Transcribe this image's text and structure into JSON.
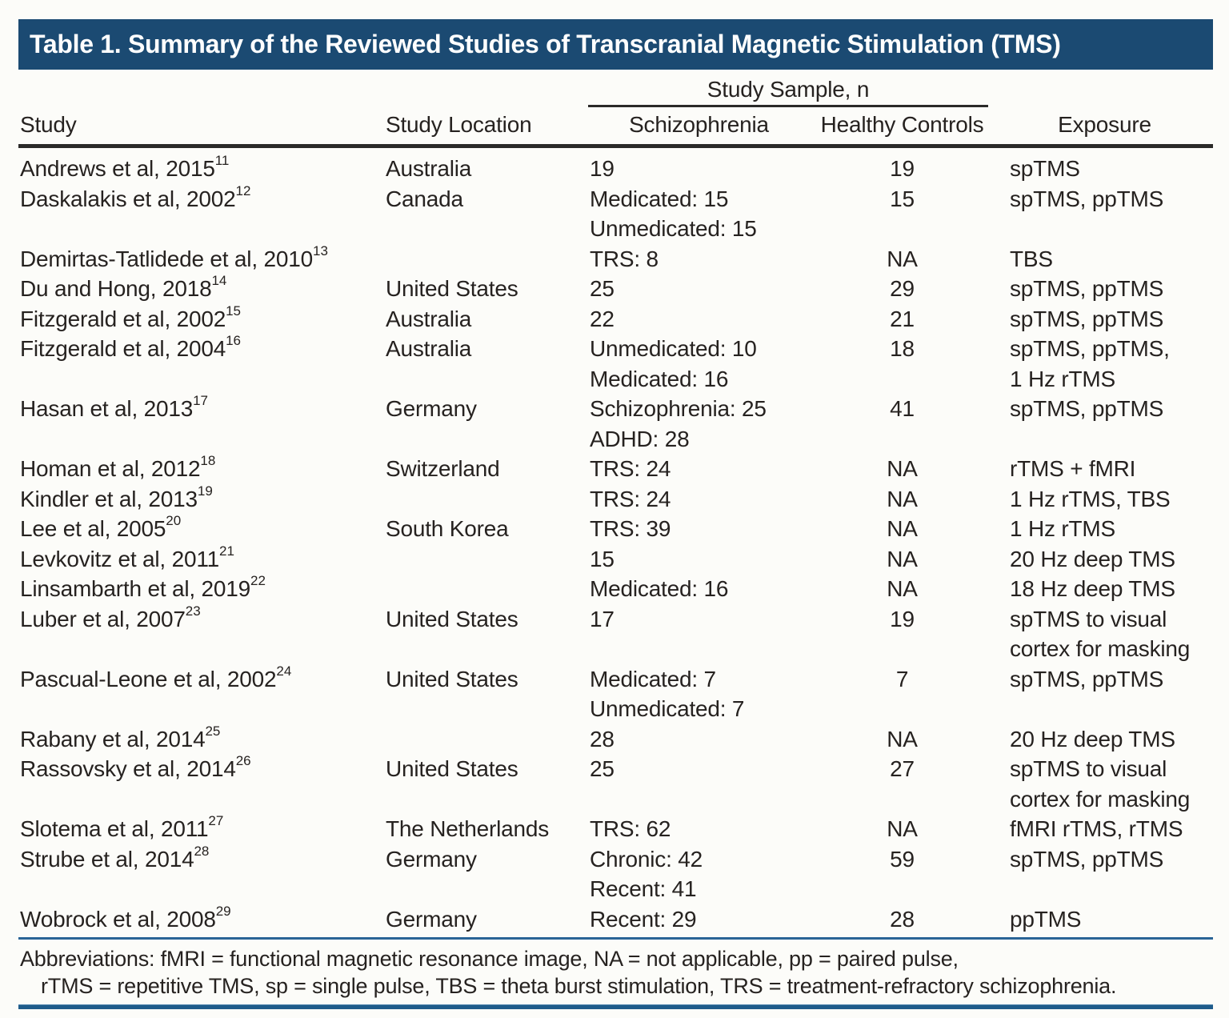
{
  "title": "Table 1. Summary of the Reviewed Studies of Transcranial Magnetic Stimulation (TMS)",
  "header": {
    "sample_spanner": "Study Sample, n",
    "columns": [
      "Study",
      "Study Location",
      "Schizophrenia",
      "Healthy Controls",
      "Exposure"
    ]
  },
  "rows": [
    {
      "study": "Andrews et al, 2015",
      "ref": "11",
      "location": "Australia",
      "schizophrenia": "19",
      "healthy_controls": "19",
      "exposure": "spTMS"
    },
    {
      "study": "Daskalakis et al, 2002",
      "ref": "12",
      "location": "Canada",
      "schizophrenia": "Medicated: 15\nUnmedicated: 15",
      "healthy_controls": "15",
      "exposure": "spTMS, ppTMS"
    },
    {
      "study": "Demirtas-Tatlidede et al, 2010",
      "ref": "13",
      "location": "",
      "schizophrenia": "TRS: 8",
      "healthy_controls": "NA",
      "exposure": "TBS"
    },
    {
      "study": "Du and Hong, 2018",
      "ref": "14",
      "location": "United States",
      "schizophrenia": "25",
      "healthy_controls": "29",
      "exposure": "spTMS, ppTMS"
    },
    {
      "study": "Fitzgerald et al, 2002",
      "ref": "15",
      "location": "Australia",
      "schizophrenia": "22",
      "healthy_controls": "21",
      "exposure": "spTMS, ppTMS"
    },
    {
      "study": "Fitzgerald et al, 2004",
      "ref": "16",
      "location": "Australia",
      "schizophrenia": "Unmedicated: 10\nMedicated: 16",
      "healthy_controls": "18",
      "exposure": "spTMS, ppTMS,\n1 Hz rTMS"
    },
    {
      "study": "Hasan et al, 2013",
      "ref": "17",
      "location": "Germany",
      "schizophrenia": "Schizophrenia: 25\nADHD: 28",
      "healthy_controls": "41",
      "exposure": "spTMS, ppTMS"
    },
    {
      "study": "Homan et al, 2012",
      "ref": "18",
      "location": "Switzerland",
      "schizophrenia": "TRS: 24",
      "healthy_controls": "NA",
      "exposure": "rTMS + fMRI"
    },
    {
      "study": "Kindler et al, 2013",
      "ref": "19",
      "location": "",
      "schizophrenia": "TRS: 24",
      "healthy_controls": "NA",
      "exposure": "1 Hz rTMS, TBS"
    },
    {
      "study": "Lee et al, 2005",
      "ref": "20",
      "location": "South Korea",
      "schizophrenia": "TRS: 39",
      "healthy_controls": "NA",
      "exposure": "1 Hz rTMS"
    },
    {
      "study": "Levkovitz et al, 2011",
      "ref": "21",
      "location": "",
      "schizophrenia": "15",
      "healthy_controls": "NA",
      "exposure": "20 Hz deep TMS"
    },
    {
      "study": "Linsambarth et al, 2019",
      "ref": "22",
      "location": "",
      "schizophrenia": "Medicated: 16",
      "healthy_controls": "NA",
      "exposure": "18 Hz deep TMS"
    },
    {
      "study": "Luber et al, 2007",
      "ref": "23",
      "location": "United States",
      "schizophrenia": "17",
      "healthy_controls": "19",
      "exposure": "spTMS to visual\ncortex for masking"
    },
    {
      "study": "Pascual-Leone et al, 2002",
      "ref": "24",
      "location": "United States",
      "schizophrenia": "Medicated: 7\nUnmedicated: 7",
      "healthy_controls": "7",
      "exposure": "spTMS, ppTMS"
    },
    {
      "study": "Rabany et al, 2014",
      "ref": "25",
      "location": "",
      "schizophrenia": "28",
      "healthy_controls": "NA",
      "exposure": "20 Hz deep TMS"
    },
    {
      "study": "Rassovsky et al, 2014",
      "ref": "26",
      "location": "United States",
      "schizophrenia": "25",
      "healthy_controls": "27",
      "exposure": "spTMS to visual\ncortex for masking"
    },
    {
      "study": "Slotema et al, 2011",
      "ref": "27",
      "location": "The Netherlands",
      "schizophrenia": "TRS: 62",
      "healthy_controls": "NA",
      "exposure": "fMRI rTMS, rTMS"
    },
    {
      "study": "Strube et al, 2014",
      "ref": "28",
      "location": "Germany",
      "schizophrenia": "Chronic: 42\nRecent: 41",
      "healthy_controls": "59",
      "exposure": "spTMS, ppTMS"
    },
    {
      "study": "Wobrock et al, 2008",
      "ref": "29",
      "location": "Germany",
      "schizophrenia": "Recent: 29",
      "healthy_controls": "28",
      "exposure": "ppTMS"
    }
  ],
  "footnote": {
    "line1": "Abbreviations: fMRI = functional magnetic resonance image, NA = not applicable, pp = paired pulse,",
    "line2": "rTMS = repetitive TMS, sp = single pulse, TBS = theta burst stimulation, TRS = treatment-refractory schizophrenia."
  },
  "colors": {
    "title_bar": "#1b4a72",
    "rule_blue": "#2a6496",
    "text": "#262220"
  }
}
